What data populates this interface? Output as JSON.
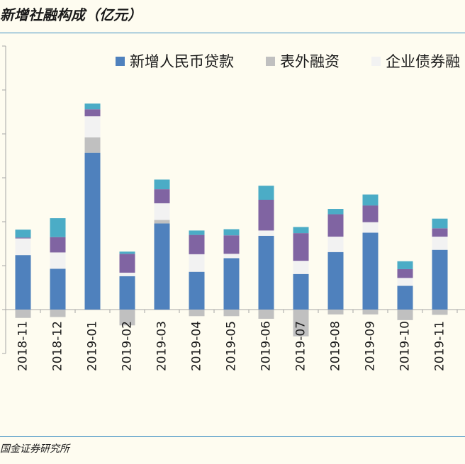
{
  "title": "新增社融构成（亿元）",
  "source": "国金证券研究所",
  "colors": {
    "loans": "#4f81bd",
    "offbalance": "#c0c0c0",
    "bonds": "#f2f2f2",
    "equity": "#8064a2",
    "other": "#4bacc6",
    "axis": "#a6a6a6",
    "rule": "#3d8fc2"
  },
  "chart_data": {
    "type": "bar",
    "stacked": true,
    "categories": [
      "2018-11",
      "2018-12",
      "2019-01",
      "2019-02",
      "2019-03",
      "2019-04",
      "2019-05",
      "2019-06",
      "2019-07",
      "2019-08",
      "2019-09",
      "2019-10",
      "2019-11"
    ],
    "series": [
      {
        "name": "新增人民币贷款",
        "color_key": "loans",
        "values": [
          12400,
          9300,
          35700,
          7600,
          19600,
          8600,
          11700,
          16800,
          8100,
          13100,
          17500,
          5400,
          13600
        ]
      },
      {
        "name": "表外融资",
        "color_key": "offbalance",
        "values": [
          -1900,
          -1700,
          3500,
          -3600,
          800,
          -1500,
          -1500,
          -2100,
          -6100,
          -1100,
          -1100,
          -2400,
          -1200
        ]
      },
      {
        "name": "企业债券融资",
        "color_key": "bonds",
        "values": [
          3800,
          3700,
          4800,
          800,
          3800,
          4000,
          1000,
          1200,
          3000,
          3500,
          2400,
          1800,
          3000
        ]
      },
      {
        "name": "",
        "color_key": "equity",
        "values": [
          200,
          3500,
          1600,
          4300,
          3200,
          4400,
          4200,
          7000,
          6300,
          5100,
          3800,
          2000,
          1900
        ]
      },
      {
        "name": "",
        "color_key": "other",
        "values": [
          1800,
          4300,
          1300,
          500,
          2200,
          1000,
          1400,
          3200,
          1400,
          1200,
          2500,
          1800,
          2200
        ]
      }
    ],
    "legend_entries": [
      "新增人民币贷款",
      "表外融资",
      "企业债券融"
    ],
    "legend_position": "top",
    "ylim": [
      -10000,
      60000
    ],
    "y_tick_step": 10000,
    "y_tick_labels_visible": false,
    "grid": false
  }
}
